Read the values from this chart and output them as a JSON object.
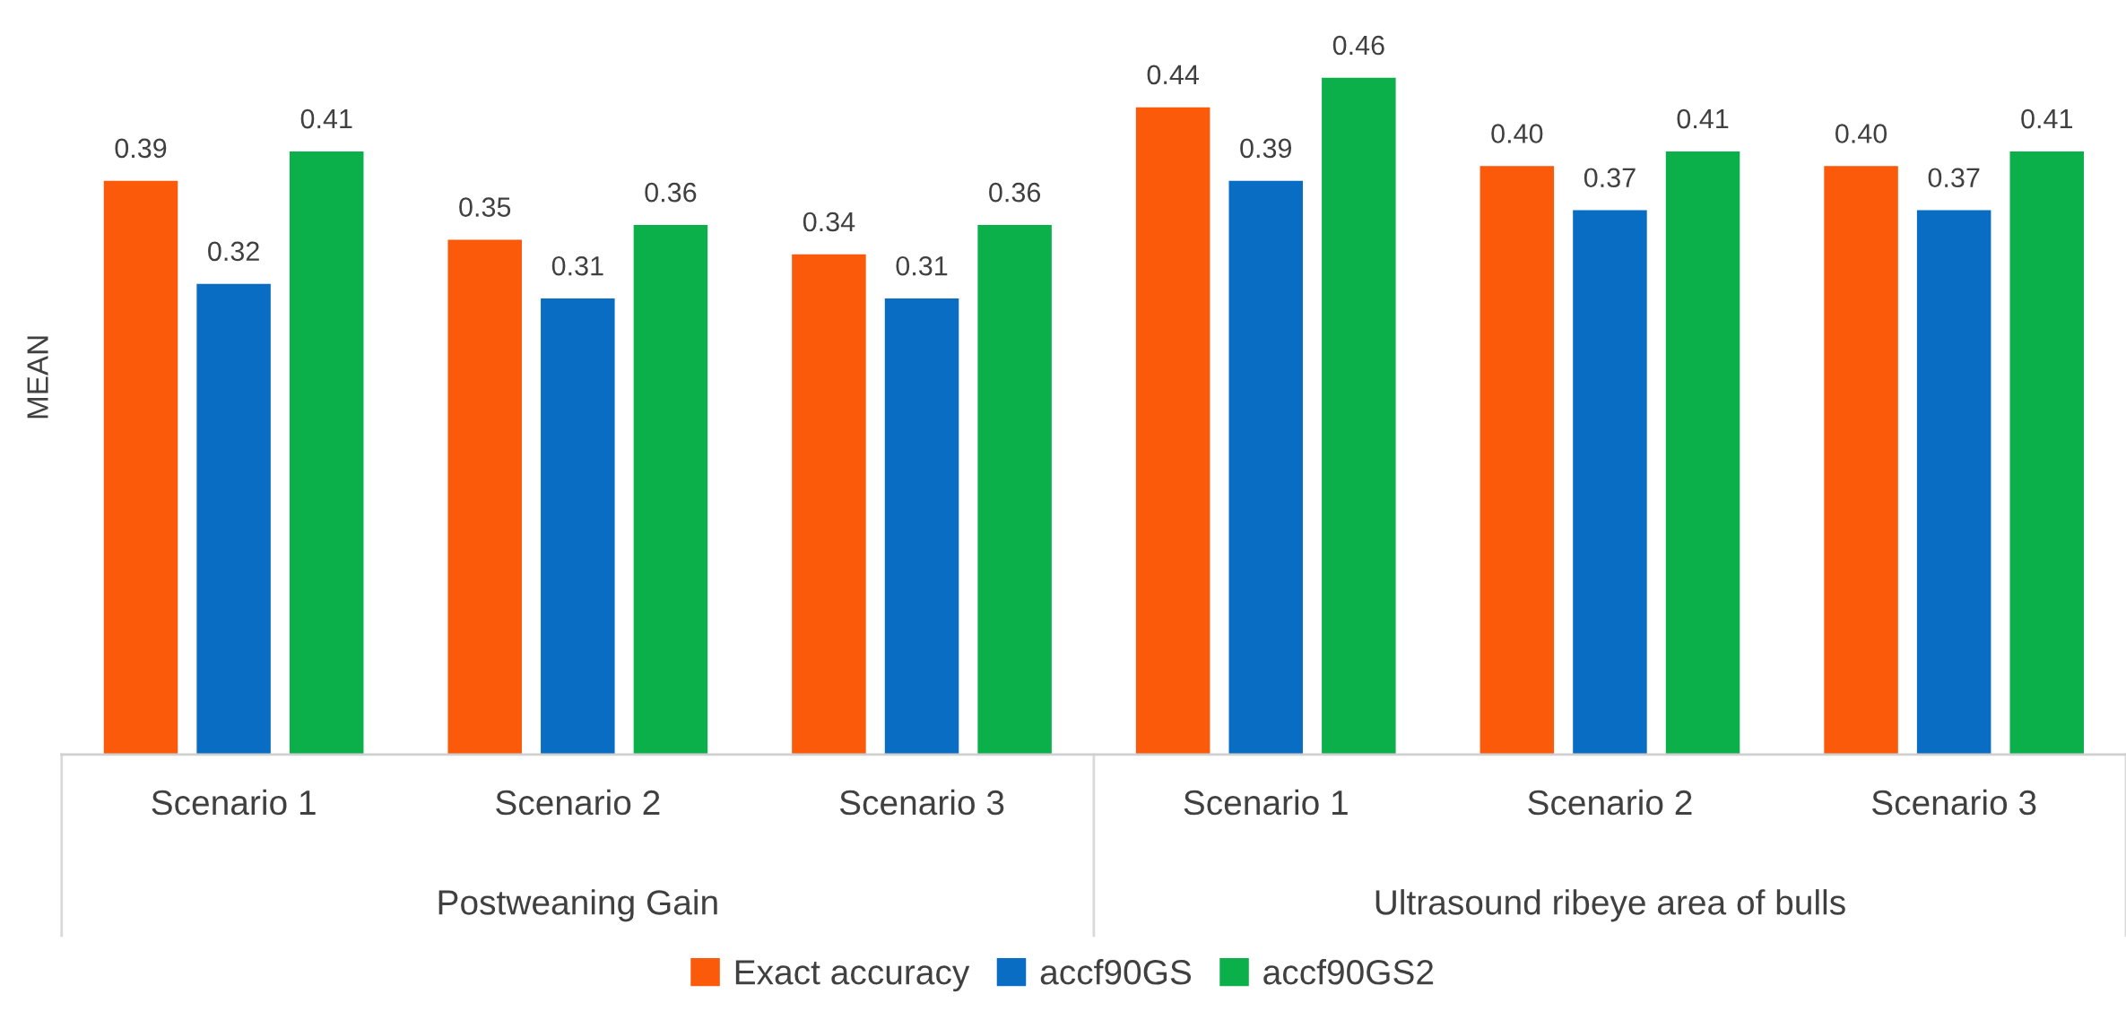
{
  "chart_data": {
    "type": "bar",
    "ylabel": "MEAN",
    "categories": [
      "Scenario 1",
      "Scenario 2",
      "Scenario 3",
      "Scenario 1",
      "Scenario 2",
      "Scenario 3"
    ],
    "annotations": [
      "Postweaning Gain",
      "Ultrasound ribeye area of bulls"
    ],
    "series": [
      {
        "name": "Exact accuracy",
        "color": "#fa5a0a",
        "values": [
          0.39,
          0.35,
          0.34,
          0.44,
          0.4,
          0.4
        ],
        "value_labels": [
          "0.39",
          "0.35",
          "0.34",
          "0.44",
          "0.40",
          "0.40"
        ]
      },
      {
        "name": "accf90GS",
        "color": "#0a6dc4",
        "values": [
          0.32,
          0.31,
          0.31,
          0.39,
          0.37,
          0.37
        ],
        "value_labels": [
          "0.32",
          "0.31",
          "0.31",
          "0.39",
          "0.37",
          "0.37"
        ]
      },
      {
        "name": "accf90GS2",
        "color": "#0cb04b",
        "values": [
          0.41,
          0.36,
          0.36,
          0.46,
          0.41,
          0.41
        ],
        "value_labels": [
          "0.41",
          "0.36",
          "0.36",
          "0.46",
          "0.41",
          "0.41"
        ]
      }
    ],
    "legend": "bottom",
    "grid": false
  }
}
